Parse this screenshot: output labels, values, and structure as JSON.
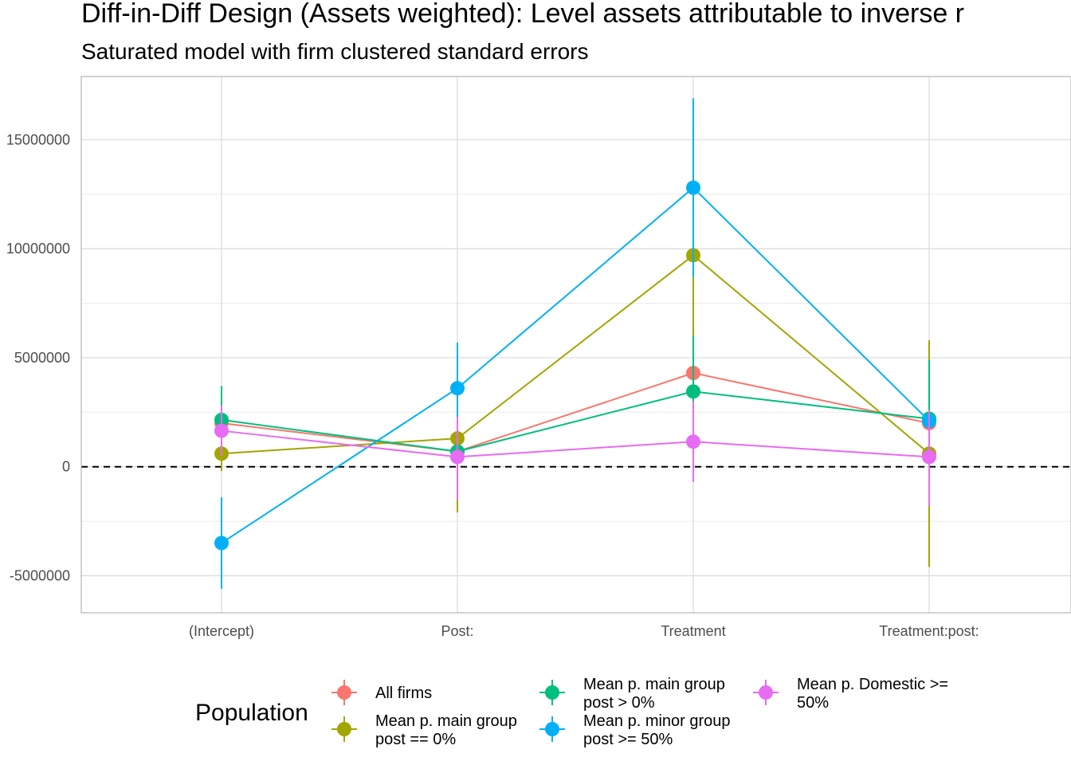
{
  "chart_data": {
    "type": "line",
    "title": "Diff-in-Diff Design (Assets weighted): Level assets attributable to inverse r",
    "subtitle": "Saturated model with firm clustered standard errors",
    "xlabel": "",
    "ylabel": "",
    "categories": [
      "(Intercept)",
      "Post:",
      "Treatment",
      "Treatment:post:"
    ],
    "ylim": [
      -6700000,
      17900000
    ],
    "yticks": [
      -5000000,
      0,
      5000000,
      10000000,
      15000000
    ],
    "ytick_labels": [
      "-5000000",
      "0",
      "5000000",
      "10000000",
      "15000000"
    ],
    "grid": true,
    "reference_line_y": 0,
    "legend": {
      "title": "Population",
      "placement": "bottom"
    },
    "series": [
      {
        "name": "All firms",
        "color": "#F8766D",
        "values": [
          2000000,
          700000,
          4300000,
          2000000
        ],
        "lower": [
          null,
          null,
          null,
          null
        ],
        "upper": [
          null,
          null,
          null,
          null
        ]
      },
      {
        "name": "Mean p. main group post == 0%",
        "legend_lines": [
          "Mean p. main group",
          "post == 0%"
        ],
        "color": "#A3A500",
        "values": [
          600000,
          1300000,
          9700000,
          600000
        ],
        "lower": [
          -200000,
          -2100000,
          6000000,
          -4600000
        ],
        "upper": [
          1500000,
          4800000,
          13400000,
          5800000
        ]
      },
      {
        "name": "Mean p. main group post > 0%",
        "legend_lines": [
          "Mean p. main group",
          "post > 0%"
        ],
        "color": "#00BF7D",
        "values": [
          2150000,
          700000,
          3450000,
          2200000
        ],
        "lower": [
          700000,
          -400000,
          1000000,
          -500000
        ],
        "upper": [
          3700000,
          1800000,
          6000000,
          4900000
        ]
      },
      {
        "name": "Mean p. minor group post >= 50%",
        "legend_lines": [
          "Mean p. minor group",
          "post >= 50%"
        ],
        "color": "#00B0F6",
        "values": [
          -3500000,
          3600000,
          12800000,
          2100000
        ],
        "lower": [
          -5600000,
          1500000,
          8700000,
          1900000
        ],
        "upper": [
          -1400000,
          5700000,
          16900000,
          2300000
        ]
      },
      {
        "name": "Mean p. Domestic >= 50%",
        "legend_lines": [
          "Mean p. Domestic >=",
          "50%"
        ],
        "color": "#E76BF3",
        "values": [
          1650000,
          450000,
          1150000,
          450000
        ],
        "lower": [
          500000,
          -1500000,
          -700000,
          -1800000
        ],
        "upper": [
          2800000,
          2300000,
          3000000,
          2600000
        ]
      }
    ]
  }
}
